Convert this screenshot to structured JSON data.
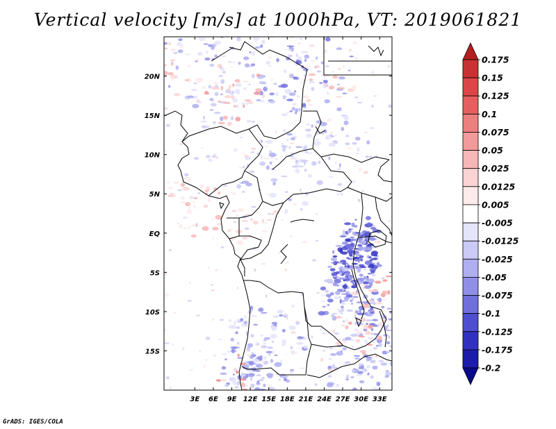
{
  "title": "Vertical velocity [m/s] at 1000hPa, VT: 2019061821",
  "credit": "GrADS: IGES/COLA",
  "map": {
    "lon_range": [
      -2,
      35
    ],
    "lat_range": [
      -20,
      25
    ],
    "lon_ticks": [
      "3E",
      "6E",
      "9E",
      "12E",
      "15E",
      "18E",
      "21E",
      "24E",
      "27E",
      "30E",
      "33E"
    ],
    "lat_ticks": [
      "20N",
      "15N",
      "10N",
      "5N",
      "EQ",
      "5S",
      "10S",
      "15S"
    ]
  },
  "colorbar": {
    "labels": [
      "0.175",
      "0.15",
      "0.125",
      "0.1",
      "0.075",
      "0.05",
      "0.025",
      "0.0125",
      "0.005",
      "-0.005",
      "-0.0125",
      "-0.025",
      "-0.05",
      "-0.075",
      "-0.1",
      "-0.125",
      "-0.175",
      "-0.2"
    ],
    "colors": [
      "#b41e1e",
      "#c83232",
      "#dc4646",
      "#e65f5f",
      "#ed7e7e",
      "#f29a9a",
      "#f7b7b7",
      "#fad4d4",
      "#fdeaea",
      "#ffffff",
      "#e4e4fb",
      "#cacaf6",
      "#aeaef0",
      "#8f8fe8",
      "#6f6fdd",
      "#4e4ed0",
      "#3131c0",
      "#1c1caa",
      "#0a0a8c"
    ]
  }
}
